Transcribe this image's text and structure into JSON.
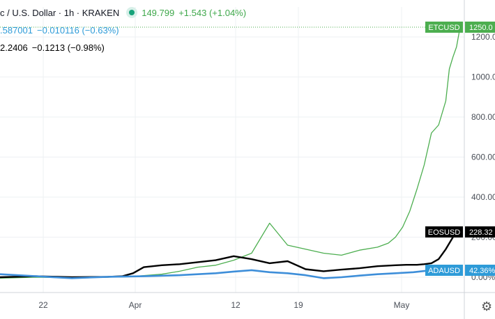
{
  "legend": {
    "main": {
      "title": "c / U.S. Dollar · 1h · KRAKEN",
      "price": "149.799",
      "change": "+1.543 (+1.04%)"
    },
    "ada": {
      "value": ".587001",
      "change": "−0.010116 (−0.63%)"
    },
    "eos": {
      "value": "2.2406",
      "change": "−0.1213 (−0.98%)"
    }
  },
  "settings_icon": "gear-icon",
  "chart_data": {
    "type": "line",
    "x_tick_labels": [
      "22",
      "Apr",
      "12",
      "19",
      "May"
    ],
    "y_tick_labels": [
      "1200.00",
      "1000.00",
      "800.00",
      "600.00",
      "400.00",
      "200.00",
      "0.00%"
    ],
    "ylim": [
      -10,
      1260
    ],
    "series": [
      {
        "name": "ETCUSD",
        "label": "ETCUSD",
        "last_label": "1250.0",
        "color": "#4cae4f",
        "x": [
          0,
          10,
          20,
          30,
          36,
          40,
          45,
          50,
          55,
          60,
          65,
          70,
          75,
          80,
          85,
          90,
          95,
          100,
          105,
          108,
          110,
          112,
          114,
          116,
          118,
          120,
          122,
          124,
          125,
          126,
          127,
          128
        ],
        "values": [
          -5,
          0,
          -3,
          0,
          2,
          8,
          15,
          30,
          50,
          60,
          85,
          120,
          270,
          160,
          140,
          120,
          110,
          135,
          150,
          170,
          200,
          250,
          330,
          440,
          560,
          720,
          760,
          880,
          1040,
          1100,
          1150,
          1250
        ]
      },
      {
        "name": "EOSUSD",
        "label": "EOSUSD",
        "last_label": "228.32",
        "color": "#000000",
        "x": [
          0,
          10,
          20,
          30,
          34,
          37,
          40,
          45,
          50,
          55,
          60,
          65,
          70,
          75,
          80,
          85,
          90,
          95,
          100,
          105,
          110,
          113,
          116,
          118,
          120,
          122,
          124,
          126,
          128
        ],
        "values": [
          0,
          5,
          0,
          2,
          5,
          20,
          50,
          60,
          65,
          75,
          85,
          105,
          90,
          70,
          80,
          40,
          30,
          38,
          45,
          55,
          60,
          62,
          62,
          65,
          70,
          90,
          140,
          200,
          230
        ]
      },
      {
        "name": "ADAUSD",
        "label": "ADAUSD",
        "last_label": "42.36%",
        "color": "#3d8ed9",
        "x": [
          0,
          10,
          20,
          30,
          40,
          50,
          60,
          65,
          70,
          75,
          80,
          85,
          90,
          95,
          100,
          105,
          110,
          115,
          120,
          125,
          128
        ],
        "values": [
          15,
          5,
          -5,
          2,
          5,
          10,
          20,
          28,
          35,
          25,
          20,
          10,
          -5,
          0,
          8,
          15,
          20,
          25,
          35,
          38,
          42
        ]
      }
    ],
    "x_range": [
      0,
      128
    ],
    "price_line": "1250.0",
    "grid": true,
    "legend_placement": "top-left"
  }
}
